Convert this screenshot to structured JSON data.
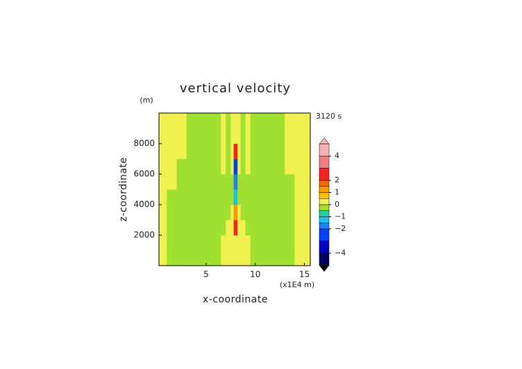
{
  "chart_data": {
    "type": "contour",
    "title": "vertical velocity",
    "y_unit": "(m)",
    "x_unit": "(x1E4 m)",
    "time_label": "3120 s",
    "xlabel": "x-coordinate",
    "ylabel": "z-coordinate",
    "xlim": [
      0.2,
      15.6
    ],
    "ylim": [
      0,
      10000
    ],
    "xticks": [
      5,
      10,
      15
    ],
    "yticks": [
      2000,
      4000,
      6000,
      8000
    ],
    "x_edges": [
      0.2,
      1,
      2,
      3,
      4,
      5,
      6,
      6.5,
      7,
      7.5,
      7.8,
      8.2,
      8.5,
      9,
      9.5,
      10,
      12,
      13,
      14,
      15.6
    ],
    "z_edges": [
      0,
      1000,
      2000,
      3000,
      4000,
      5000,
      6000,
      7000,
      8000,
      9000,
      10000
    ],
    "z": [
      [
        0.2,
        -0.2,
        -0.2,
        -0.2,
        -0.2,
        -0.2,
        -0.2,
        0.2,
        0.2,
        0.2,
        0.2,
        0.2,
        0.2,
        0.2,
        -0.2,
        -0.2,
        -0.2,
        -0.2,
        0.2
      ],
      [
        0.2,
        -0.2,
        -0.2,
        -0.2,
        -0.2,
        -0.2,
        -0.2,
        0.2,
        0.2,
        0.2,
        0.2,
        0.2,
        0.2,
        0.2,
        -0.2,
        -0.2,
        -0.2,
        -0.2,
        0.2
      ],
      [
        0.2,
        -0.2,
        -0.2,
        -0.2,
        -0.2,
        -0.2,
        -0.2,
        -0.2,
        0.2,
        0.2,
        2.5,
        0.2,
        0.2,
        -0.2,
        -0.2,
        -0.2,
        -0.2,
        -0.2,
        0.2
      ],
      [
        0.2,
        -0.2,
        -0.2,
        -0.2,
        -0.2,
        -0.2,
        -0.2,
        -0.2,
        -0.2,
        0.2,
        1.2,
        0.2,
        -0.2,
        -0.2,
        -0.2,
        -0.2,
        -0.2,
        -0.2,
        0.2
      ],
      [
        0.2,
        -0.2,
        -0.2,
        -0.2,
        -0.2,
        -0.2,
        -0.2,
        -0.2,
        -0.2,
        -0.2,
        -1.2,
        -0.2,
        -0.2,
        -0.2,
        -0.2,
        -0.2,
        -0.2,
        -0.2,
        0.2
      ],
      [
        0.2,
        0.2,
        -0.2,
        -0.2,
        -0.2,
        -0.2,
        -0.2,
        -0.2,
        -0.2,
        -0.2,
        -1.8,
        -0.2,
        -0.2,
        -0.2,
        -0.2,
        -0.2,
        -0.2,
        -0.2,
        0.2
      ],
      [
        0.2,
        0.2,
        -0.2,
        -0.2,
        -0.2,
        -0.2,
        -0.2,
        0.2,
        -0.2,
        0.2,
        -2.5,
        0.2,
        -0.2,
        0.2,
        -0.2,
        -0.2,
        -0.2,
        0.2,
        0.2
      ],
      [
        0.2,
        0.2,
        0.2,
        -0.2,
        -0.2,
        -0.2,
        -0.2,
        0.2,
        -0.2,
        0.2,
        2.5,
        0.2,
        -0.2,
        0.2,
        -0.2,
        -0.2,
        -0.2,
        0.2,
        0.2
      ],
      [
        0.2,
        0.2,
        0.2,
        -0.2,
        -0.2,
        -0.2,
        -0.2,
        0.2,
        -0.2,
        0.2,
        0.2,
        0.2,
        -0.2,
        0.2,
        -0.2,
        -0.2,
        -0.2,
        0.2,
        0.2
      ],
      [
        0.2,
        0.2,
        0.2,
        -0.2,
        -0.2,
        -0.2,
        -0.2,
        0.2,
        -0.2,
        0.2,
        0.2,
        0.2,
        -0.2,
        0.2,
        -0.2,
        -0.2,
        -0.2,
        0.2,
        0.2
      ]
    ],
    "clim": [
      -5,
      5
    ],
    "levels": [
      -5,
      -4,
      -3,
      -2,
      -1.5,
      -1,
      -0.5,
      0,
      0.5,
      1,
      1.5,
      2,
      3,
      4,
      5
    ],
    "colors": [
      "#000060",
      "#0000c0",
      "#0040ff",
      "#2080ff",
      "#20c0e8",
      "#20d0a0",
      "#a0e030",
      "#f0f050",
      "#ffc000",
      "#ff9900",
      "#ff6600",
      "#ff2020",
      "#f08080",
      "#f5b0b0"
    ],
    "extend_colors": [
      "#000000",
      "#f5b0b0"
    ],
    "cticks": [
      {
        "value": -4,
        "label": "−4"
      },
      {
        "value": -2,
        "label": "−2"
      },
      {
        "value": -1,
        "label": "−1"
      },
      0,
      1,
      2,
      4
    ]
  }
}
